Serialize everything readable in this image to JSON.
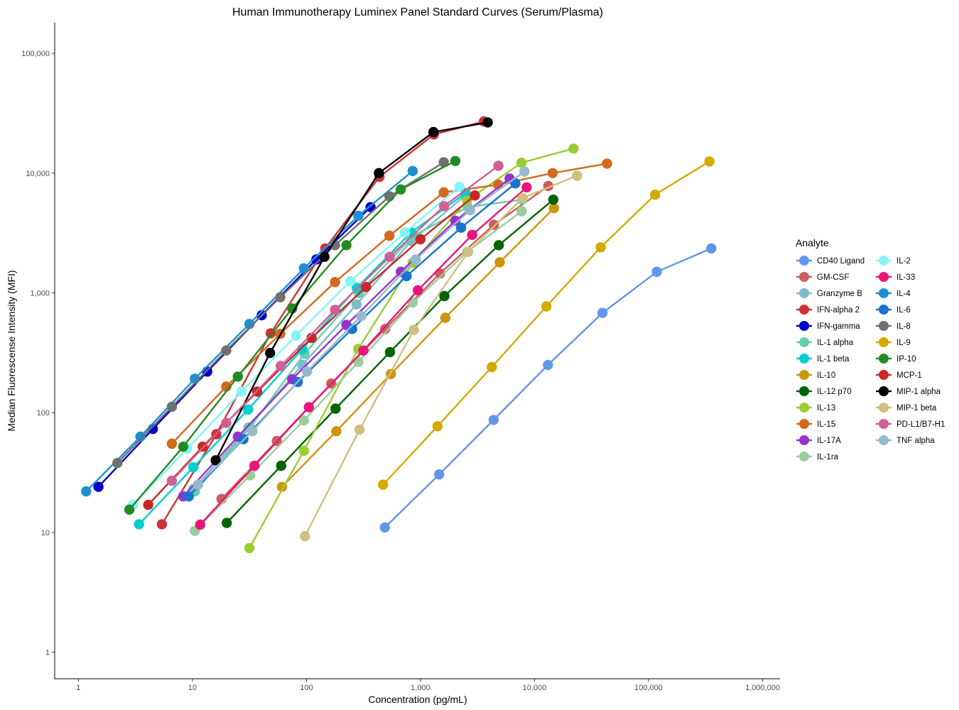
{
  "chart_data": {
    "type": "line",
    "title": "Human Immunotherapy Luminex Panel Standard Curves (Serum/Plasma)",
    "xlabel": "Concentration (pg/mL)",
    "ylabel": "Median Fluorescense Intensity (MFI)",
    "xscale": "log",
    "yscale": "log",
    "xlim": [
      0.62,
      1420000
    ],
    "ylim": [
      0.6,
      180000
    ],
    "x_ticks": [
      1,
      10,
      100,
      1000,
      10000,
      100000,
      1000000
    ],
    "x_tick_labels": [
      "1",
      "10",
      "100",
      "1,000",
      "10,000",
      "100,000",
      "1,000,000"
    ],
    "y_ticks": [
      1,
      10,
      100,
      1000,
      10000,
      100000
    ],
    "y_tick_labels": [
      "1",
      "10",
      "100",
      "1,000",
      "10,000",
      "100,000"
    ],
    "grid": false,
    "legend": {
      "title": "Analyte",
      "position": "right",
      "columns": 2
    },
    "series": [
      {
        "name": "CD40 Ligand",
        "color": "#6495ED",
        "x": [
          487,
          1460,
          4380,
          13100,
          39400,
          118000,
          355000
        ],
        "y": [
          11.0,
          30.5,
          87,
          250,
          680,
          1500,
          2350
        ]
      },
      {
        "name": "GM-CSF",
        "color": "#CD5C5C",
        "x": [
          18,
          55,
          165,
          490,
          1480,
          4400,
          13200
        ],
        "y": [
          19.0,
          58,
          175,
          500,
          1450,
          3700,
          7800
        ]
      },
      {
        "name": "Granzyme B",
        "color": "#7DBBC9",
        "x": [
          10.2,
          31,
          92,
          275,
          825,
          2470
        ],
        "y": [
          23.0,
          75,
          250,
          800,
          2700,
          6500
        ]
      },
      {
        "name": "IFN-alpha 2",
        "color": "#CD3333",
        "x": [
          5.4,
          16.2,
          48.6,
          146,
          437,
          1310,
          3600
        ],
        "y": [
          11.7,
          66,
          460,
          2350,
          9300,
          21000,
          27000
        ]
      },
      {
        "name": "IFN-gamma",
        "color": "#0000CD",
        "x": [
          1.5,
          4.5,
          13.5,
          40.5,
          122,
          365
        ],
        "y": [
          24.0,
          73,
          220,
          650,
          1900,
          5200
        ]
      },
      {
        "name": "IL-1 alpha",
        "color": "#66CDAA",
        "x": [
          10.5,
          32,
          96,
          288,
          864,
          2600,
          7800
        ],
        "y": [
          22.0,
          75,
          310,
          1000,
          3000,
          5200,
          6000
        ]
      },
      {
        "name": "IL-1 beta",
        "color": "#00CED1",
        "x": [
          3.4,
          10.2,
          30.7,
          92,
          276,
          830,
          2490
        ],
        "y": [
          11.7,
          35,
          106,
          340,
          1100,
          3200,
          6800
        ]
      },
      {
        "name": "IL-10",
        "color": "#CD950C",
        "x": [
          61,
          183,
          550,
          1650,
          4950,
          14800
        ],
        "y": [
          24.0,
          70,
          210,
          620,
          1800,
          5100
        ]
      },
      {
        "name": "IL-12 p70",
        "color": "#006400",
        "x": [
          20,
          60,
          180,
          540,
          1620,
          4860,
          14600
        ],
        "y": [
          12.0,
          36,
          108,
          320,
          940,
          2500,
          6000
        ]
      },
      {
        "name": "IL-13",
        "color": "#9ACD32",
        "x": [
          31.6,
          95,
          284,
          853,
          2560,
          7680,
          22000
        ],
        "y": [
          7.4,
          48,
          340,
          1780,
          5900,
          12200,
          16000
        ]
      },
      {
        "name": "IL-15",
        "color": "#D2691E",
        "x": [
          6.6,
          19.8,
          59,
          178,
          534,
          1600,
          4800,
          14400,
          43200
        ],
        "y": [
          55,
          165,
          455,
          1230,
          3000,
          6900,
          8000,
          10000,
          12000
        ]
      },
      {
        "name": "IL-17A",
        "color": "#9932CC",
        "x": [
          8.3,
          25,
          75,
          224,
          672,
          2020,
          6050
        ],
        "y": [
          20.0,
          63,
          190,
          540,
          1500,
          4000,
          9000
        ]
      },
      {
        "name": "IL-1ra",
        "color": "#9ACD9A",
        "x": [
          10.5,
          32,
          95,
          285,
          855,
          2570,
          7700
        ],
        "y": [
          10.3,
          30,
          86,
          265,
          830,
          2200,
          4800
        ]
      },
      {
        "name": "IL-2",
        "color": "#87F5F5",
        "x": [
          3.0,
          9.0,
          27,
          81,
          243,
          730,
          2190
        ],
        "y": [
          17.0,
          50,
          150,
          440,
          1250,
          3200,
          7700
        ]
      },
      {
        "name": "IL-33",
        "color": "#E8167A",
        "x": [
          11.7,
          35,
          105,
          316,
          948,
          2840,
          8530
        ],
        "y": [
          11.6,
          36,
          111,
          330,
          1050,
          3050,
          7600
        ]
      },
      {
        "name": "IL-4",
        "color": "#1E90D2",
        "x": [
          1.17,
          3.5,
          10.5,
          31.6,
          95,
          285,
          853
        ],
        "y": [
          22.0,
          63,
          192,
          550,
          1600,
          4400,
          10400
        ]
      },
      {
        "name": "IL-6",
        "color": "#1874CD",
        "x": [
          9.3,
          28,
          84,
          252,
          756,
          2270,
          6800
        ],
        "y": [
          20.0,
          60,
          180,
          500,
          1380,
          3500,
          8200
        ]
      },
      {
        "name": "IL-8",
        "color": "#707070",
        "x": [
          2.2,
          6.6,
          19.8,
          59,
          178,
          534,
          1600
        ],
        "y": [
          38.0,
          112,
          330,
          920,
          2500,
          6400,
          12300
        ]
      },
      {
        "name": "IL-9",
        "color": "#D4AA00",
        "x": [
          469,
          1410,
          4220,
          12700,
          38000,
          114000,
          342000
        ],
        "y": [
          25.0,
          77,
          240,
          770,
          2400,
          6600,
          12500
        ]
      },
      {
        "name": "IP-10",
        "color": "#228B22",
        "x": [
          2.8,
          8.3,
          25,
          75,
          224,
          672,
          2020
        ],
        "y": [
          15.5,
          52,
          200,
          740,
          2500,
          7300,
          12600
        ]
      },
      {
        "name": "MCP-1",
        "color": "#C62828",
        "x": [
          4.1,
          12.3,
          37,
          111,
          333,
          1000,
          3000
        ],
        "y": [
          17.0,
          52,
          150,
          420,
          1120,
          2800,
          6500
        ]
      },
      {
        "name": "MIP-1 alpha",
        "color": "#000000",
        "x": [
          16,
          48,
          144,
          432,
          1300,
          3890
        ],
        "y": [
          40.0,
          315,
          2000,
          10000,
          22000,
          26500
        ]
      },
      {
        "name": "MIP-1 beta",
        "color": "#CDC080",
        "x": [
          97,
          292,
          875,
          2620,
          7870,
          23600
        ],
        "y": [
          9.3,
          72,
          490,
          2200,
          6200,
          9500
        ]
      },
      {
        "name": "PD-L1/B7-H1",
        "color": "#D16094",
        "x": [
          6.6,
          19.8,
          59.5,
          178,
          536,
          1610,
          4820
        ],
        "y": [
          27.0,
          82,
          245,
          720,
          2000,
          5300,
          11500
        ]
      },
      {
        "name": "TNF alpha",
        "color": "#96B9CC",
        "x": [
          11.2,
          33.6,
          101,
          302,
          907,
          2720,
          8160
        ],
        "y": [
          25.0,
          70,
          220,
          640,
          1900,
          4900,
          10300
        ]
      }
    ]
  }
}
